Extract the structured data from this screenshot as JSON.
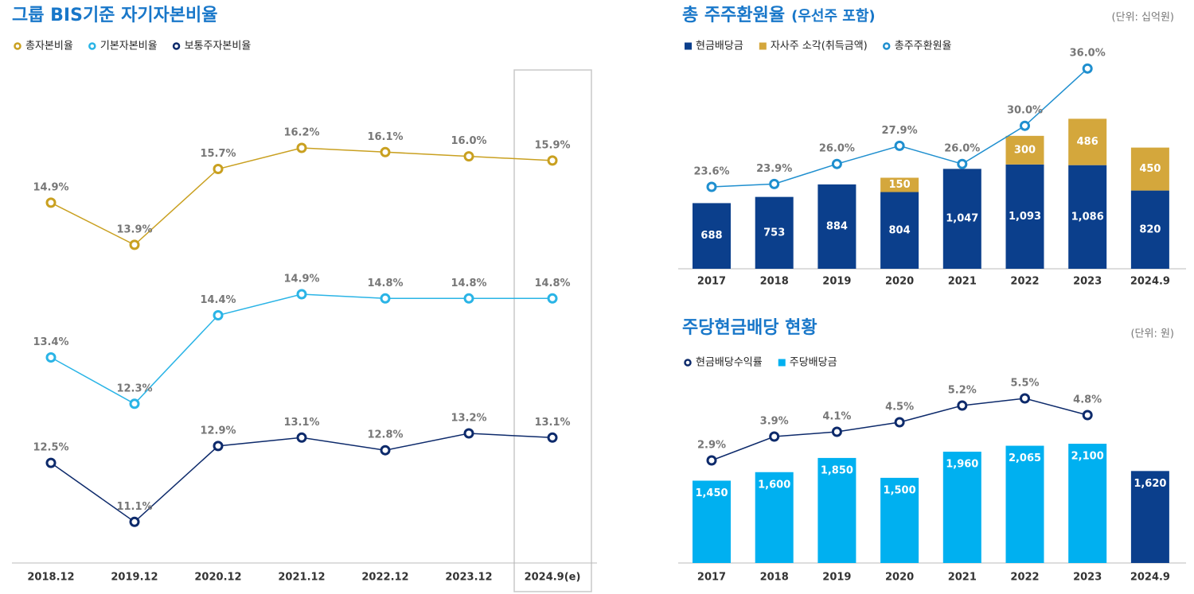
{
  "chart_data": [
    {
      "type": "line",
      "title": "그룹 BIS기준 자기자본비율",
      "categories": [
        "2018.12",
        "2019.12",
        "2020.12",
        "2021.12",
        "2022.12",
        "2023.12",
        "2024.9(e)"
      ],
      "series": [
        {
          "name": "총자본비율",
          "color": "#c9a020",
          "type": "line",
          "values": [
            14.9,
            13.9,
            15.7,
            16.2,
            16.1,
            16.0,
            15.9
          ],
          "value_labels": [
            "14.9%",
            "13.9%",
            "15.7%",
            "16.2%",
            "16.1%",
            "16.0%",
            "15.9%"
          ]
        },
        {
          "name": "기본자본비율",
          "color": "#2ab4e6",
          "type": "line",
          "values": [
            13.4,
            12.3,
            14.4,
            14.9,
            14.8,
            14.8,
            14.8
          ],
          "value_labels": [
            "13.4%",
            "12.3%",
            "14.4%",
            "14.9%",
            "14.8%",
            "14.8%",
            "14.8%"
          ]
        },
        {
          "name": "보통주자본비율",
          "color": "#0d2a6b",
          "type": "line",
          "values": [
            12.5,
            11.1,
            12.9,
            13.1,
            12.8,
            13.2,
            13.1
          ],
          "value_labels": [
            "12.5%",
            "11.1%",
            "12.9%",
            "13.1%",
            "12.8%",
            "13.2%",
            "13.1%"
          ]
        }
      ]
    },
    {
      "type": "bar_line",
      "title": "총 주주환원율",
      "subtitle": "(우선주 포함)",
      "unit": "(단위: 십억원)",
      "stacked": true,
      "categories": [
        "2017",
        "2018",
        "2019",
        "2020",
        "2021",
        "2022",
        "2023",
        "2024.9"
      ],
      "series": [
        {
          "name": "현금배당금",
          "color": "#0b3f8c",
          "type": "bar",
          "values": [
            688,
            753,
            884,
            804,
            1047,
            1093,
            1086,
            820
          ],
          "value_labels": [
            "688",
            "753",
            "884",
            "804",
            "1,047",
            "1,093",
            "1,086",
            "820"
          ]
        },
        {
          "name": "자사주 소각(취득금액)",
          "color": "#d4a73c",
          "type": "bar",
          "values": [
            null,
            null,
            null,
            150,
            null,
            300,
            486,
            450
          ]
        },
        {
          "name": "총주주환원율",
          "color": "#1f8fcf",
          "type": "line",
          "values": [
            23.6,
            23.9,
            26.0,
            27.9,
            26.0,
            30.0,
            36.0,
            null
          ],
          "value_labels": [
            "23.6%",
            "23.9%",
            "26.0%",
            "27.9%",
            "26.0%",
            "30.0%",
            "36.0%",
            null
          ]
        }
      ]
    },
    {
      "type": "bar_line",
      "title": "주당현금배당 현황",
      "unit": "(단위: 원)",
      "categories": [
        "2017",
        "2018",
        "2019",
        "2020",
        "2021",
        "2022",
        "2023",
        "2024.9"
      ],
      "series": [
        {
          "name": "현금배당수익률",
          "color": "#0d2a6b",
          "type": "line",
          "values": [
            2.9,
            3.9,
            4.1,
            4.5,
            5.2,
            5.5,
            4.8,
            null
          ],
          "value_labels": [
            "2.9%",
            "3.9%",
            "4.1%",
            "4.5%",
            "5.2%",
            "5.5%",
            "4.8%",
            null
          ]
        },
        {
          "name": "주당배당금",
          "color": "#00b0f0",
          "type": "bar",
          "colors": [
            "#00b0f0",
            "#00b0f0",
            "#00b0f0",
            "#00b0f0",
            "#00b0f0",
            "#00b0f0",
            "#00b0f0",
            "#0b3f8c"
          ],
          "values": [
            1450,
            1600,
            1850,
            1500,
            1960,
            2065,
            2100,
            1620
          ],
          "value_labels": [
            "1,450",
            "1,600",
            "1,850",
            "1,500",
            "1,960",
            "2,065",
            "2,100",
            "1,620"
          ]
        }
      ]
    }
  ]
}
